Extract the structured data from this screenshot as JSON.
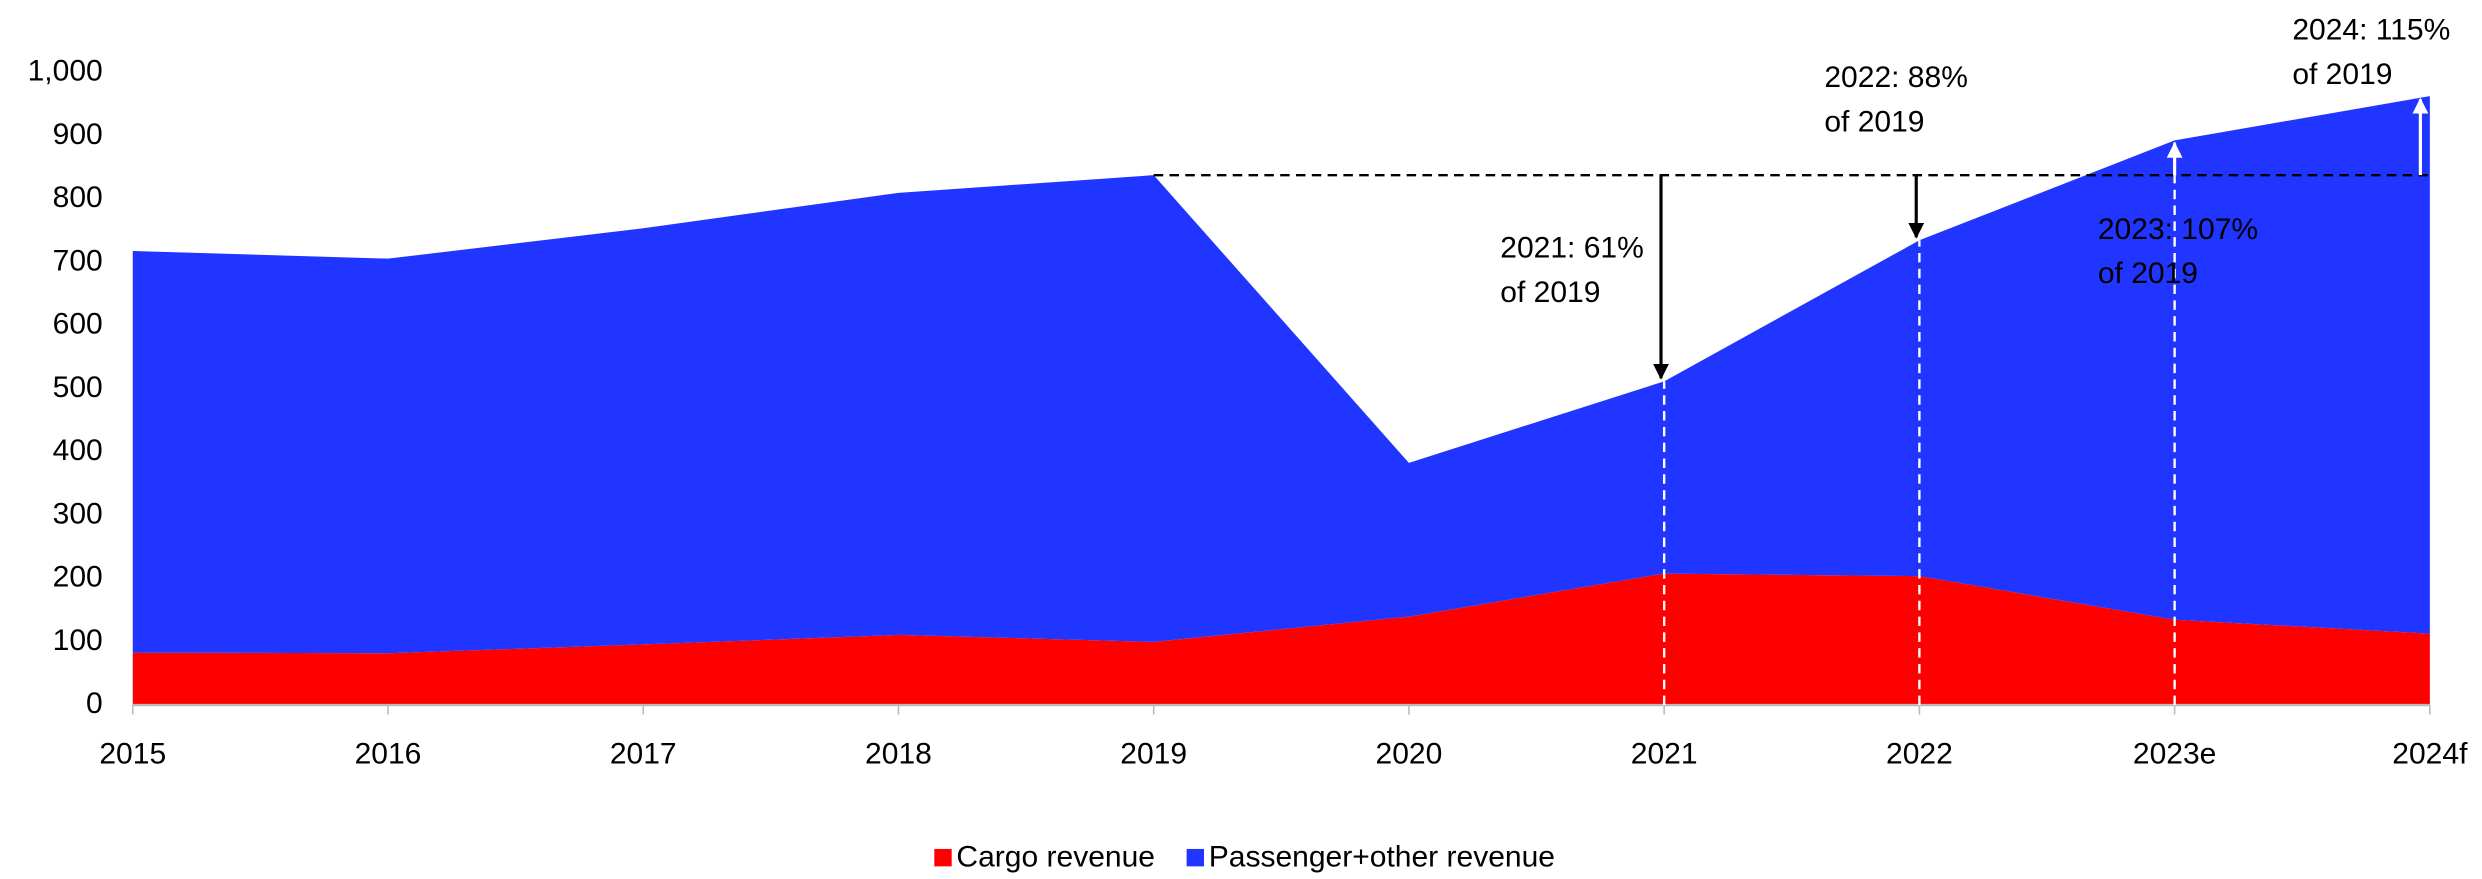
{
  "chart_data": {
    "type": "stacked_area",
    "categories": [
      "2015",
      "2016",
      "2017",
      "2018",
      "2019",
      "2020",
      "2021",
      "2022",
      "2023e",
      "2024f"
    ],
    "series": [
      {
        "name": "Cargo revenue",
        "color": "#ff0000",
        "values": [
          83,
          82,
          96,
          111,
          100,
          140,
          208,
          204,
          135,
          113
        ]
      },
      {
        "name": "Passenger+other revenue",
        "color": "#2035ff",
        "values": [
          635,
          624,
          658,
          699,
          738,
          243,
          304,
          531,
          758,
          850
        ]
      }
    ],
    "ylim": [
      0,
      1000
    ],
    "yticks": [
      0,
      100,
      200,
      300,
      400,
      500,
      600,
      700,
      800,
      900,
      {
        "value": 1000,
        "label": "1,000"
      }
    ],
    "annotations": [
      {
        "lines": [
          "2021: 61%",
          "of 2019"
        ],
        "category": "2021",
        "color": "#000000"
      },
      {
        "lines": [
          "2022: 88%",
          "of 2019"
        ],
        "category": "2022",
        "color": "#000000"
      },
      {
        "lines": [
          "2023: 107%",
          "of 2019"
        ],
        "category": "2023e",
        "color": "#ffffff"
      },
      {
        "lines": [
          "2024: 115%",
          "of 2019"
        ],
        "category": "2024f",
        "color": "#000000"
      }
    ],
    "legend": "bottom"
  }
}
